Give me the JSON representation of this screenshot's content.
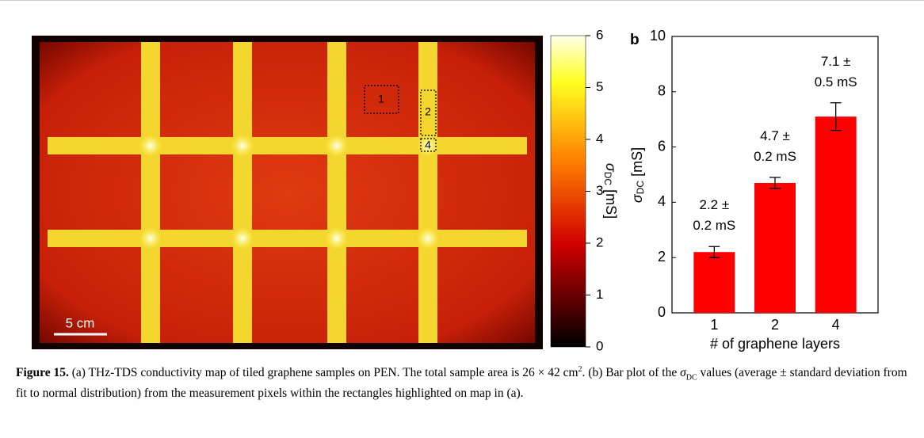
{
  "panel_a": {
    "label": "a",
    "scale_bar": "5 cm",
    "regions": [
      "1",
      "2",
      "4"
    ],
    "colorbar": {
      "symbol": "σ",
      "subscript": "DC",
      "unit": " [mS]",
      "lim": [
        0,
        6
      ],
      "ticks": [
        0,
        1,
        2,
        3,
        4,
        5,
        6
      ]
    }
  },
  "chart_data": {
    "type": "bar",
    "panel_label": "b",
    "categories": [
      "1",
      "2",
      "4"
    ],
    "values": [
      2.2,
      4.7,
      7.1
    ],
    "errors": [
      0.2,
      0.2,
      0.5
    ],
    "value_labels": [
      "2.2 ±\n0.2 mS",
      "4.7 ±\n0.2 mS",
      "7.1 ±\n0.5 mS"
    ],
    "color": "#ff0000",
    "ylim": [
      0,
      10
    ],
    "yticks": [
      0,
      2,
      4,
      6,
      8,
      10
    ],
    "ylabel": {
      "symbol": "σ",
      "subscript": "DC",
      "unit": " [mS]"
    },
    "xlabel": "# of graphene layers"
  },
  "caption": {
    "label": "Figure 15.",
    "text1": " (a) THz-TDS conductivity map of tiled graphene samples on PEN. The total sample area is 26 × 42 cm",
    "sup": "2",
    "text2": ". (b) Bar plot of the ",
    "sigma": "σ",
    "sub": "DC",
    "text3": " values (average ± standard deviation from fit to normal distribution) from the measurement pixels within the rectangles highlighted on map in (a)."
  }
}
